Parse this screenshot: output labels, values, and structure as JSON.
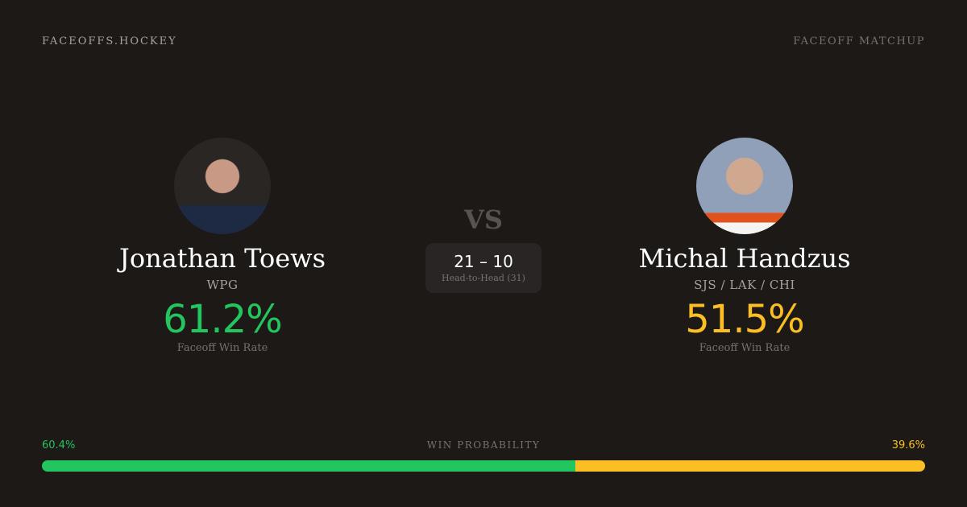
{
  "site": "FACEOFFS.HOCKEY",
  "page_tag": "FACEOFF MATCHUP",
  "vs": "VS",
  "colors": {
    "background": "#1c1917",
    "player1": "#22c55e",
    "player2": "#fbbf24"
  },
  "player1": {
    "name": "Jonathan Toews",
    "team": "WPG",
    "win_rate": "61.2%",
    "win_rate_label": "Faceoff Win Rate"
  },
  "player2": {
    "name": "Michal Handzus",
    "team": "SJS / LAK / CHI",
    "win_rate": "51.5%",
    "win_rate_label": "Faceoff Win Rate"
  },
  "head_to_head": {
    "score": "21 – 10",
    "label": "Head-to-Head (31)"
  },
  "win_probability": {
    "title": "WIN PROBABILITY",
    "player1": "60.4%",
    "player2": "39.6%",
    "player1_value": 60.4,
    "player2_value": 39.6
  }
}
